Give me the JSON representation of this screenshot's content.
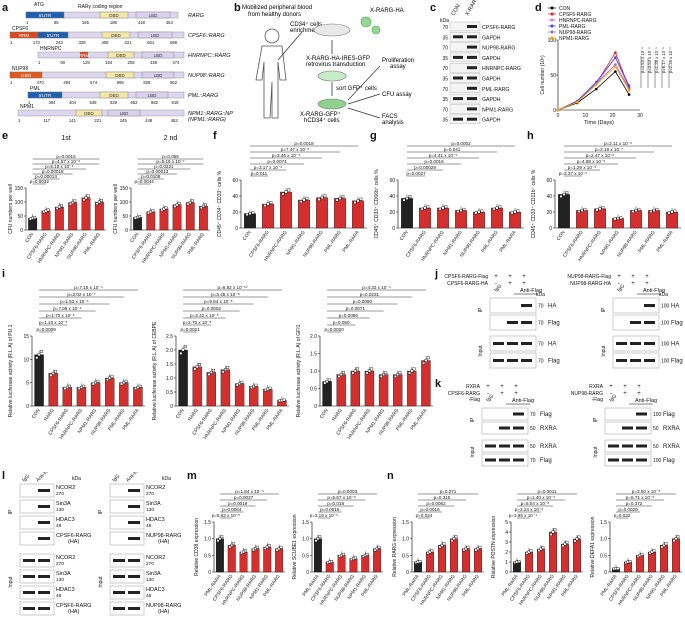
{
  "panel_letters": [
    "a",
    "b",
    "c",
    "d",
    "e",
    "f",
    "g",
    "h",
    "i",
    "j",
    "k",
    "l",
    "m",
    "n"
  ],
  "a": {
    "constructs": [
      {
        "name": "RARG",
        "segments": [
          "ATG",
          "5'UTR",
          "RARγ coding region",
          "DBD",
          "LBD"
        ],
        "numbers": [
          "1",
          "85",
          "165",
          "188",
          "418",
          "454"
        ]
      },
      {
        "name": "CPSF6::RARG",
        "top": "CPSF6",
        "segments": [
          "RRM",
          "5'UTR",
          "DBD",
          "LBD"
        ],
        "numbers": [
          "1",
          "173",
          "243",
          "328",
          "408",
          "431",
          "661",
          "698"
        ]
      },
      {
        "name": "HNRNPC::RARG",
        "top": "HNRNPC",
        "segments": [
          "RRM",
          "DBD",
          "LBD"
        ],
        "numbers": [
          "1",
          "90",
          "129",
          "184",
          "208",
          "438",
          "474"
        ]
      },
      {
        "name": "NUP98::RARG",
        "top": "NUP98",
        "segments": [
          "GBD",
          "DBD",
          "LBD"
        ],
        "numbers": [
          "1",
          "470",
          "494",
          "574",
          "598",
          "828",
          "862"
        ]
      },
      {
        "name": "PML::RARG",
        "top": "PML",
        "segments": [
          "5'UTR",
          "DBD",
          "LBD"
        ],
        "numbers": [
          "1",
          "394",
          "404",
          "549",
          "629",
          "652",
          "882",
          "918"
        ]
      },
      {
        "name": "NPM1::RARG::NPM1\n(NPM1::RARG)",
        "top": "NPM1",
        "segments": [
          "DBD",
          "LBD"
        ],
        "numbers": [
          "1",
          "117",
          "141",
          "221",
          "245",
          "448",
          "463"
        ]
      }
    ]
  },
  "b": {
    "title": "Mobilized peripheral blood\nfrom healthy donors",
    "step1": "CD34⁺ cells\nenrichment",
    "vector": "X-RARG-HA",
    "step2": "X-RARG-HA-IRES-GFP\nretrovirus transduction",
    "step3": "sort GFP⁺ cells",
    "cells": "X-RARG-GFP⁺\nhCD34⁺ cells",
    "assays": [
      "Proliferation\nassay",
      "CFU assay",
      "FACS\nanalysis"
    ]
  },
  "c": {
    "lanes": [
      "CON",
      "X-RARG"
    ],
    "rows": [
      {
        "label": "CPSF6-RARG",
        "kda": "70"
      },
      {
        "label": "GAPDH",
        "kda": "35"
      },
      {
        "label": "NUP98-RARG",
        "kda": "70"
      },
      {
        "label": "GAPDH",
        "kda": "35"
      },
      {
        "label": "HNRNPC-RARG",
        "kda": "70"
      },
      {
        "label": "GAPDH",
        "kda": "35"
      },
      {
        "label": "PML-RARG",
        "kda": "70"
      },
      {
        "label": "GAPDH",
        "kda": "35"
      },
      {
        "label": "NPM1-RARG",
        "kda": "70"
      },
      {
        "label": "GAPDH",
        "kda": "35"
      }
    ],
    "ladder_label": "kDa"
  },
  "chart_data": [
    {
      "panel": "d",
      "type": "line",
      "ylabel": "Cell number (10⁶)",
      "xlabel": "Time (Days)",
      "xlim": [
        0,
        30
      ],
      "ylim": [
        0,
        100
      ],
      "x": [
        0,
        7,
        14,
        21,
        26
      ],
      "series": [
        {
          "name": "CON",
          "color": "#000000",
          "values": [
            0,
            10,
            30,
            55,
            22
          ]
        },
        {
          "name": "CPSF6-RARG",
          "color": "#e41a1c",
          "values": [
            0,
            12,
            38,
            82,
            32
          ]
        },
        {
          "name": "HNRNPC-RARG",
          "color": "#e377c2",
          "values": [
            0,
            12,
            38,
            75,
            30
          ]
        },
        {
          "name": "PML-RARG",
          "color": "#4040ff",
          "values": [
            0,
            13,
            40,
            75,
            35
          ]
        },
        {
          "name": "NUP98-RARG",
          "color": "#9467bd",
          "values": [
            0,
            12,
            38,
            65,
            30
          ]
        },
        {
          "name": "NPM1-RARG",
          "color": "#ffa500",
          "values": [
            0,
            11,
            36,
            62,
            28
          ]
        }
      ],
      "pvalues": [
        "p=4.53 x 10⁻⁶",
        "p=3.53 x 10⁻⁵",
        "p=1.28 x 10⁻⁵",
        "p=6.17 x 10⁻⁶",
        "p=2.35 x 10⁻⁵"
      ]
    },
    {
      "panel": "e1",
      "type": "bar",
      "title": "1st",
      "ylabel": "CFU numbers per well",
      "ylim": [
        0,
        150
      ],
      "yticks": [
        "0",
        "50",
        "100",
        "150"
      ],
      "categories": [
        "CON",
        "CPSF6-RARG",
        "HNRNPC-RARG",
        "NPM1-RARG",
        "NUP98-RARG",
        "PML-RARG"
      ],
      "values": [
        42,
        68,
        82,
        98,
        115,
        100
      ],
      "pvalues": [
        "p=0.0015",
        "p=4.57 x 10⁻⁵",
        "p=5.18 x 10⁻⁶",
        "p=0.00018",
        "p=0.00014",
        "p=0.0032"
      ]
    },
    {
      "panel": "e2",
      "type": "bar",
      "title": "2 nd",
      "ylabel": "CFU numbers per well",
      "ylim": [
        0,
        150
      ],
      "yticks": [
        "0",
        "50",
        "100",
        "150"
      ],
      "categories": [
        "CON",
        "CPSF6-RARG",
        "HNRNPC-RARG",
        "NPM1-RARG",
        "NUP98-RARG",
        "PML-RARG"
      ],
      "values": [
        45,
        65,
        75,
        90,
        98,
        85
      ],
      "pvalues": [
        "p=0.055",
        "p=5.19 x 10⁻⁷",
        "p=0.0221",
        "p=0.00013",
        "p=0.0108",
        "p=0.0044"
      ]
    },
    {
      "panel": "f",
      "type": "bar",
      "ylabel": "CD45⁺ CD34⁺ CD33⁺ cells %",
      "ylim": [
        0,
        60
      ],
      "yticks": [
        "0",
        "20",
        "40",
        "60"
      ],
      "categories": [
        "CON",
        "CPSF6-RARG",
        "HNRNPC-RARG",
        "NPM1-RARG",
        "NUP98-RARG",
        "PML-RARG",
        "PML-RARA"
      ],
      "values": [
        18,
        30,
        45,
        35,
        38,
        37,
        34
      ],
      "pvalues": [
        "p=0.0018",
        "p=7.47 x 10⁻⁵",
        "p=3.46 x 10⁻⁴",
        "p=0.0074",
        "p=3.17 x 10⁻⁴",
        "p=0.011"
      ]
    },
    {
      "panel": "g",
      "type": "bar",
      "ylabel": "CD45⁺ CD33⁺ CD66b⁺ cells %",
      "ylim": [
        0,
        60
      ],
      "yticks": [
        "0",
        "20",
        "40",
        "60"
      ],
      "categories": [
        "CON",
        "CPSF6-RARG",
        "HNRNPC-RARG",
        "NPM1-RARG",
        "NUP98-RARG",
        "PML-RARG",
        "PML-RARA"
      ],
      "values": [
        37,
        25,
        25,
        22,
        20,
        25,
        20
      ],
      "pvalues": [
        "p=0.0002",
        "p=0.041",
        "p=4.41 x 10⁻⁵",
        "p=0.0016",
        "p=0.00029",
        "p=0.0027"
      ]
    },
    {
      "panel": "h",
      "type": "bar",
      "ylabel": "CD45⁺ CD33⁺ CD11b⁺ cells %",
      "ylim": [
        0,
        60
      ],
      "yticks": [
        "0",
        "20",
        "40",
        "60"
      ],
      "categories": [
        "CON",
        "CPSF6-RARG",
        "HNRNPC-RARG",
        "NPM1-RARG",
        "NUP98-RARG",
        "PML-RARG",
        "PML-RARA"
      ],
      "values": [
        42,
        22,
        24,
        12,
        22,
        22,
        20
      ],
      "pvalues": [
        "p=2.11 x 10⁻⁶",
        "p=2.19 x 10⁻⁷",
        "p=2.47 x 10⁻⁶",
        "p=4.88 x 10⁻⁶",
        "p=1.29 x 10⁻⁶",
        "p=3.37 x 10⁻⁶"
      ]
    },
    {
      "panel": "i1",
      "type": "bar",
      "ylabel": "Relative luciferase activity (R.L.A) of PU.1",
      "ylim": [
        0,
        15
      ],
      "yticks": [
        "0",
        "5",
        "10",
        "15"
      ],
      "categories": [
        "CON",
        "RARG",
        "CPSF6-RARG",
        "HNRNPC-RARG",
        "NPM1-RARG",
        "NUP98-RARG",
        "PML-RARG",
        "PML-RARA"
      ],
      "values": [
        11,
        7,
        4,
        4,
        5,
        6,
        5,
        4
      ],
      "pvalues": [
        "p=7.15 x 10⁻⁴",
        "p=2.02 x 10⁻⁷",
        "p=1.53 x 10⁻⁶",
        "p=7.06 x 10⁻⁶",
        "p=1.70 x 10⁻⁶",
        "p=1.10 x 10⁻⁵",
        "p=0.0009"
      ]
    },
    {
      "panel": "i2",
      "type": "bar",
      "ylabel": "Relative luciferase activity (R.L.A) of CEBPE",
      "ylim": [
        0,
        2.5
      ],
      "yticks": [
        "0",
        "0.5",
        "1.0",
        "1.5",
        "2.0",
        "2.5"
      ],
      "categories": [
        "CON",
        "RARG",
        "CPSF6-RARG",
        "HNRNPC-RARG",
        "NPM1-RARG",
        "NUP98-RARG",
        "PML-RARG",
        "PML-RARA"
      ],
      "values": [
        2.0,
        1.4,
        1.2,
        1.3,
        0.8,
        0.7,
        0.6,
        0.2
      ],
      "pvalues": [
        "p=6.92 x 10⁻¹⁰",
        "p=3.45 x 10⁻⁸",
        "p=9.94 x 10⁻⁸",
        "p=0.0002",
        "p=3.42 x 10⁻⁵",
        "p=2.76 x 10⁻⁸",
        "p=0.0021"
      ]
    },
    {
      "panel": "i3",
      "type": "bar",
      "ylabel": "Relative luciferase activity (R.L.A) of GFI1",
      "ylim": [
        0,
        2.0
      ],
      "yticks": [
        "0",
        "0.5",
        "1.0",
        "1.5",
        "2.0"
      ],
      "categories": [
        "CON",
        "RARG",
        "CPSF6-RARG",
        "HNRNPC-RARG",
        "NPM1-RARG",
        "NUP98-RARG",
        "PML-RARG",
        "PML-RARA"
      ],
      "values": [
        0.7,
        0.9,
        1.0,
        1.0,
        0.9,
        0.9,
        1.0,
        1.3
      ],
      "pvalues": [
        "p=4.33 x 10⁻⁴",
        "p=0.0231",
        "p=0.0090",
        "p=0.0071",
        "p=0.0096",
        "p=0.050",
        "p=0.0020"
      ]
    },
    {
      "panel": "m1",
      "type": "bar",
      "ylabel": "Relative CD38 expression",
      "ylim": [
        0,
        1.5
      ],
      "yticks": [
        "0",
        "0.5",
        "1.0",
        "1.5"
      ],
      "categories": [
        "PML-RARA",
        "CPSF6-RARG",
        "HNRNPC-RARG",
        "NUP98-RARG",
        "NPM1-RARG",
        "PML-RARG"
      ],
      "values": [
        1.0,
        0.8,
        0.6,
        0.7,
        0.75,
        0.7
      ],
      "pvalues": [
        "p=1.84 x 10⁻⁴",
        "p=0.0027",
        "p=0.0019",
        "p=0.0004",
        "p=5.62 x 10⁻⁵"
      ]
    },
    {
      "panel": "m2",
      "type": "bar",
      "ylabel": "Relative SCUBE1 expression",
      "ylim": [
        0,
        1.5
      ],
      "yticks": [
        "0",
        "0.5",
        "1.0",
        "1.5"
      ],
      "categories": [
        "PML-RARA",
        "CPSF6-RARG",
        "HNRNPC-RARG",
        "NUP98-RARG",
        "NPM1-RARG",
        "PML-RARG"
      ],
      "values": [
        1.0,
        0.3,
        0.5,
        0.4,
        0.5,
        0.7
      ],
      "pvalues": [
        "p=0.0003",
        "p=5.57 x 10⁻⁸",
        "p=0.018",
        "p=0.0015",
        "p=3.19 x 10⁻⁵"
      ]
    },
    {
      "panel": "n1",
      "type": "bar",
      "ylabel": "Relative RARG expression",
      "ylim": [
        0,
        1.5
      ],
      "yticks": [
        "0",
        "0.5",
        "1.0",
        "1.5"
      ],
      "categories": [
        "PML-RARA",
        "CPSF6-RARG",
        "HNRNPC-RARG",
        "NPM1-RARG",
        "NUP98-RARG",
        "PML-RARG"
      ],
      "values": [
        0.3,
        0.6,
        0.8,
        1.0,
        0.7,
        0.7
      ],
      "pvalues": [
        "p=0.271",
        "p=0.315",
        "p=0.0062",
        "p=0.0016",
        "p=0.024"
      ]
    },
    {
      "panel": "n2",
      "type": "bar",
      "ylabel": "Relative POSTN expression",
      "ylim": [
        0,
        5
      ],
      "yticks": [
        "0",
        "1",
        "2",
        "3",
        "4",
        "5"
      ],
      "categories": [
        "PML-RARA",
        "CPSF6-RARG",
        "HNRNPC-RARG",
        "NUP98-RARG",
        "NPM1-RARG",
        "PML-RARG"
      ],
      "values": [
        1.0,
        2.0,
        2.3,
        4.0,
        2.8,
        3.3
      ],
      "pvalues": [
        "p=0.0011",
        "p=1.40 x 10⁻⁵",
        "p=5.04 x 10⁻⁸",
        "p=3.24 x 10⁻⁶",
        "p=3.95 x 10⁻⁴"
      ]
    },
    {
      "panel": "n3",
      "type": "bar",
      "ylabel": "Relative DEFA1 expression",
      "ylim": [
        0,
        1.5
      ],
      "yticks": [
        "0",
        "0.5",
        "1.0",
        "1.5"
      ],
      "categories": [
        "PML-RARA",
        "CPSF6-RARG",
        "HNRNPC-RARG",
        "NUP98-RARG",
        "NPM1-RARG",
        "PML-RARG"
      ],
      "values": [
        0.1,
        0.3,
        0.5,
        0.6,
        0.8,
        1.0
      ],
      "pvalues": [
        "p=3.50 x 10⁻⁵",
        "p=5.71 x 10⁻⁵",
        "p=0.372",
        "p=0.0029",
        "p=0.032"
      ]
    }
  ],
  "j": {
    "left": {
      "rows": [
        "CPSF6-RARG-Flag",
        "CPSF6-RARG-HA"
      ],
      "cols": [
        "IgG",
        "Anti-Flag"
      ],
      "signs": [
        [
          "+",
          "+",
          "+"
        ],
        [
          "-",
          "+",
          "+"
        ]
      ],
      "bands": [
        {
          "l": "HA",
          "k": "70"
        },
        {
          "l": "Flag",
          "k": "70"
        },
        {
          "l": "HA",
          "k": "70"
        },
        {
          "l": "Flag",
          "k": "70"
        }
      ],
      "ip": "IP",
      "input": "Input",
      "kda": "kDa"
    },
    "right": {
      "rows": [
        "NUP98-RARG-Flag",
        "NUP98-RARG-HA"
      ],
      "cols": [
        "IgG",
        "Anti-Flag"
      ],
      "signs": [
        [
          "+",
          "+",
          "+"
        ],
        [
          "-",
          "+",
          "+"
        ]
      ],
      "bands": [
        {
          "l": "HA",
          "k": "100"
        },
        {
          "l": "Flag",
          "k": "100"
        },
        {
          "l": "HA",
          "k": "100"
        },
        {
          "l": "Flag",
          "k": "100"
        }
      ],
      "ip": "IP",
      "input": "Input",
      "kda": "kDa"
    }
  },
  "k": {
    "left": {
      "rows": [
        "RXRA",
        "CPSF6-RARG\n-Flag"
      ],
      "cols": [
        "IgG",
        "Anti-Flag"
      ],
      "signs": [
        [
          "+",
          "+",
          "+"
        ],
        [
          "-",
          "+",
          "+"
        ]
      ],
      "bands": [
        {
          "l": "Flag",
          "k": "70"
        },
        {
          "l": "RXRA",
          "k": "50"
        },
        {
          "l": "RXRA",
          "k": "50"
        },
        {
          "l": "Flag",
          "k": "70"
        }
      ],
      "ip": "IP",
      "input": "Input"
    },
    "right": {
      "rows": [
        "RXRA",
        "NUP98-RARG\n-Flag"
      ],
      "cols": [
        "IgG",
        "Anti-Flag"
      ],
      "signs": [
        [
          "+",
          "+",
          "+"
        ],
        [
          "-",
          "+",
          "+"
        ]
      ],
      "bands": [
        {
          "l": "Flag",
          "k": "100"
        },
        {
          "l": "RXRA",
          "k": "50"
        },
        {
          "l": "RXRA",
          "k": "50"
        },
        {
          "l": "Flag",
          "k": "100"
        }
      ],
      "ip": "IP",
      "input": "Input"
    }
  },
  "l": {
    "left": {
      "cols": [
        "IgG",
        "Anti-HA"
      ],
      "bands": [
        {
          "l": "NCOR2",
          "k": "270"
        },
        {
          "l": "Sin3A",
          "k": "130"
        },
        {
          "l": "HDAC3",
          "k": "48"
        },
        {
          "l": "CPSF6-RARG\n(HA)",
          "k": "70"
        },
        {
          "l": "NCOR2",
          "k": "270"
        },
        {
          "l": "Sin3A",
          "k": "130"
        },
        {
          "l": "HDAC3",
          "k": "48"
        },
        {
          "l": "CPSF6-RARG\n(HA)",
          "k": "70"
        }
      ],
      "ip": "IP",
      "input": "Input",
      "kda": "kDa"
    },
    "right": {
      "cols": [
        "IgG",
        "Anti-HA"
      ],
      "bands": [
        {
          "l": "NCOR2",
          "k": "270"
        },
        {
          "l": "Sin3A",
          "k": "130"
        },
        {
          "l": "HDAC3",
          "k": "48"
        },
        {
          "l": "NUP98-RARG\n(HA)",
          "k": "100"
        },
        {
          "l": "NCOR2",
          "k": "270"
        },
        {
          "l": "Sin3A",
          "k": "130"
        },
        {
          "l": "HDAC3",
          "k": "48"
        },
        {
          "l": "NUP98-RARG\n(HA)",
          "k": "100"
        }
      ],
      "ip": "IP",
      "input": "Input",
      "kda": "kDa"
    }
  }
}
